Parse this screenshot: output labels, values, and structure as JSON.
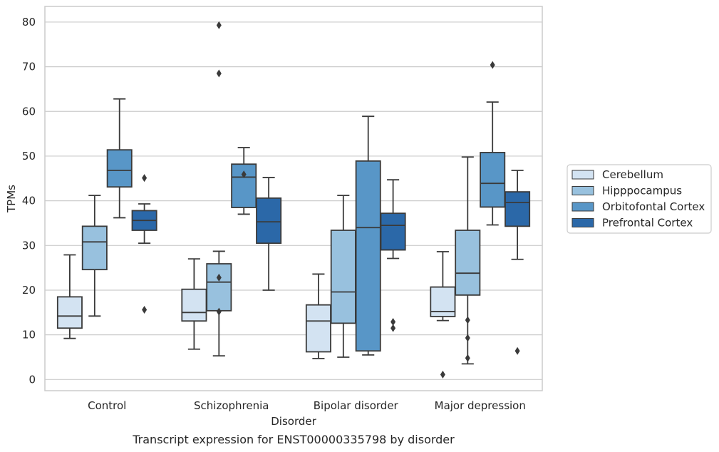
{
  "chart_data": {
    "type": "box",
    "xlabel": "Disorder",
    "ylabel": "TPMs",
    "caption": "Transcript expression for ENST00000335798 by disorder",
    "ylim": [
      -2.5,
      83.5
    ],
    "yticks": [
      0,
      10,
      20,
      30,
      40,
      50,
      60,
      70,
      80
    ],
    "grid": "horizontal",
    "legend_position": "right",
    "categories": [
      "Control",
      "Schizophrenia",
      "Bipolar disorder",
      "Major depression"
    ],
    "series": [
      {
        "name": "Cerebellum",
        "color": "#d3e3f2",
        "boxes": [
          {
            "whislo": 9.2,
            "q1": 11.5,
            "med": 14.2,
            "q3": 18.5,
            "whishi": 27.9,
            "fliers": []
          },
          {
            "whislo": 6.8,
            "q1": 13.1,
            "med": 15.0,
            "q3": 20.2,
            "whishi": 27.0,
            "fliers": []
          },
          {
            "whislo": 4.7,
            "q1": 6.2,
            "med": 13.1,
            "q3": 16.7,
            "whishi": 23.6,
            "fliers": []
          },
          {
            "whislo": 13.2,
            "q1": 14.1,
            "med": 15.2,
            "q3": 20.7,
            "whishi": 28.6,
            "fliers": [
              1.1
            ]
          }
        ]
      },
      {
        "name": "Hipppocampus",
        "color": "#98c1de",
        "boxes": [
          {
            "whislo": 14.2,
            "q1": 24.6,
            "med": 30.8,
            "q3": 34.3,
            "whishi": 41.2,
            "fliers": []
          },
          {
            "whislo": 5.3,
            "q1": 15.4,
            "med": 21.8,
            "q3": 25.9,
            "whishi": 28.7,
            "fliers": [
              79.3,
              68.5,
              22.8,
              15.2
            ]
          },
          {
            "whislo": 5.0,
            "q1": 12.6,
            "med": 19.6,
            "q3": 33.4,
            "whishi": 41.2,
            "fliers": []
          },
          {
            "whislo": 3.5,
            "q1": 18.9,
            "med": 23.8,
            "q3": 33.4,
            "whishi": 49.8,
            "fliers": [
              13.3,
              9.3,
              4.8
            ]
          }
        ]
      },
      {
        "name": "Orbitofontal Cortex",
        "color": "#5896c7",
        "boxes": [
          {
            "whislo": 36.2,
            "q1": 43.1,
            "med": 46.8,
            "q3": 51.4,
            "whishi": 62.8,
            "fliers": []
          },
          {
            "whislo": 37.0,
            "q1": 38.5,
            "med": 45.3,
            "q3": 48.2,
            "whishi": 51.9,
            "fliers": [
              45.9
            ]
          },
          {
            "whislo": 5.5,
            "q1": 6.4,
            "med": 34.0,
            "q3": 48.9,
            "whishi": 58.9,
            "fliers": []
          },
          {
            "whislo": 34.6,
            "q1": 38.6,
            "med": 43.9,
            "q3": 50.8,
            "whishi": 62.1,
            "fliers": [
              70.4
            ]
          }
        ]
      },
      {
        "name": "Prefrontal Cortex",
        "color": "#2b68a8",
        "boxes": [
          {
            "whislo": 30.5,
            "q1": 33.4,
            "med": 35.6,
            "q3": 37.8,
            "whishi": 39.3,
            "fliers": [
              45.1,
              15.6
            ]
          },
          {
            "whislo": 20.0,
            "q1": 30.5,
            "med": 35.3,
            "q3": 40.6,
            "whishi": 45.2,
            "fliers": []
          },
          {
            "whislo": 27.1,
            "q1": 29.0,
            "med": 34.5,
            "q3": 37.2,
            "whishi": 44.7,
            "fliers": [
              12.9,
              11.5
            ]
          },
          {
            "whislo": 26.9,
            "q1": 34.3,
            "med": 39.6,
            "q3": 42.0,
            "whishi": 46.8,
            "fliers": [
              6.4
            ]
          }
        ]
      }
    ]
  }
}
